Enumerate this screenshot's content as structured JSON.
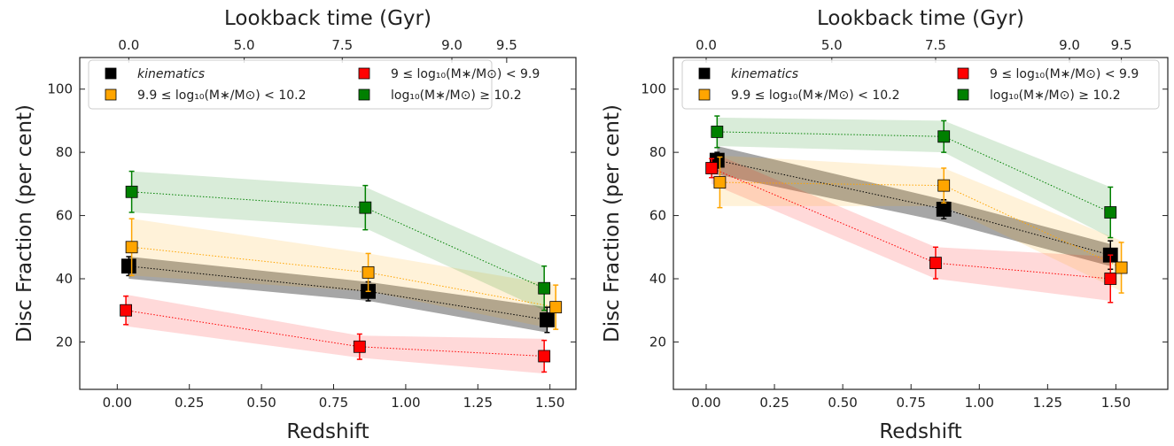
{
  "chart_data": [
    {
      "type": "errorbar",
      "xlabel": "Redshift",
      "ylabel": "Disc Fraction (per cent)",
      "x2label": "Lookback time (Gyr)",
      "xlim": [
        -0.13,
        1.59
      ],
      "ylim": [
        5,
        110
      ],
      "xticks": [
        {
          "value": 0,
          "label": "0.00"
        },
        {
          "value": 0.25,
          "label": "0.25"
        },
        {
          "value": 0.5,
          "label": "0.50"
        },
        {
          "value": 0.75,
          "label": "0.75"
        },
        {
          "value": 1,
          "label": "1.00"
        },
        {
          "value": 1.25,
          "label": "1.25"
        },
        {
          "value": 1.5,
          "label": "1.50"
        }
      ],
      "yticks": [
        20,
        40,
        60,
        80,
        100
      ],
      "x2ticks": [
        {
          "value": 0.04,
          "label": "0.0"
        },
        {
          "value": 0.44,
          "label": "5.0"
        },
        {
          "value": 0.78,
          "label": "7.5"
        },
        {
          "value": 1.16,
          "label": "9.0"
        },
        {
          "value": 1.35,
          "label": "9.5"
        }
      ],
      "series": [
        {
          "name": "kinematics",
          "color": "#000000",
          "x": [
            0.04,
            0.87,
            1.49
          ],
          "values": [
            44,
            36,
            27
          ],
          "errors": [
            3,
            3,
            4
          ],
          "band_lower": [
            40,
            33,
            23
          ],
          "band_upper": [
            47,
            39,
            31
          ]
        },
        {
          "name": "9 ≤ log₁₀(M∗/M⊙) < 9.9",
          "color": "#ff0000",
          "x": [
            0.03,
            0.84,
            1.48
          ],
          "values": [
            30,
            18.5,
            15.5
          ],
          "errors": [
            4.5,
            4,
            5
          ],
          "band_lower": [
            25,
            15,
            10
          ],
          "band_upper": [
            35,
            22,
            21
          ]
        },
        {
          "name": "9.9 ≤ log₁₀(M∗/M⊙) < 10.2",
          "color": "#ffa500",
          "x": [
            0.05,
            0.87,
            1.52
          ],
          "values": [
            50,
            42,
            31
          ],
          "errors": [
            9,
            6,
            7
          ],
          "band_lower": [
            41,
            36,
            24
          ],
          "band_upper": [
            59,
            48,
            38
          ]
        },
        {
          "name": "log₁₀(M∗/M⊙) ≥ 10.2",
          "color": "#008000",
          "x": [
            0.05,
            0.86,
            1.48
          ],
          "values": [
            67.5,
            62.5,
            37
          ],
          "errors": [
            6.5,
            7,
            7
          ],
          "band_lower": [
            61,
            56,
            30
          ],
          "band_upper": [
            74,
            69,
            44
          ]
        }
      ]
    },
    {
      "type": "errorbar",
      "xlabel": "Redshift",
      "ylabel": "Disc Fraction (per cent)",
      "x2label": "Lookback time (Gyr)",
      "xlim": [
        -0.12,
        1.69
      ],
      "ylim": [
        5,
        110
      ],
      "xticks": [
        {
          "value": 0,
          "label": "0.00"
        },
        {
          "value": 0.25,
          "label": "0.25"
        },
        {
          "value": 0.5,
          "label": "0.50"
        },
        {
          "value": 0.75,
          "label": "0.75"
        },
        {
          "value": 1,
          "label": "1.00"
        },
        {
          "value": 1.25,
          "label": "1.25"
        },
        {
          "value": 1.5,
          "label": "1.50"
        }
      ],
      "yticks": [
        20,
        40,
        60,
        80,
        100
      ],
      "x2ticks": [
        {
          "value": 0.0,
          "label": "0.0"
        },
        {
          "value": 0.46,
          "label": "5.0"
        },
        {
          "value": 0.84,
          "label": "7.5"
        },
        {
          "value": 1.33,
          "label": "9.0"
        },
        {
          "value": 1.52,
          "label": "9.5"
        }
      ],
      "series": [
        {
          "name": "kinematics",
          "color": "#000000",
          "x": [
            0.04,
            0.87,
            1.48
          ],
          "values": [
            77.5,
            62,
            47.5
          ],
          "errors": [
            2.5,
            3,
            4.5
          ],
          "band_lower": [
            73,
            58,
            44
          ],
          "band_upper": [
            82,
            65,
            51
          ]
        },
        {
          "name": "9 ≤ log₁₀(M∗/M⊙) < 9.9",
          "color": "#ff0000",
          "x": [
            0.02,
            0.84,
            1.48
          ],
          "values": [
            75,
            45,
            40
          ],
          "errors": [
            3,
            5,
            7.5
          ],
          "band_lower": [
            70,
            40,
            33
          ],
          "band_upper": [
            80,
            50,
            47
          ]
        },
        {
          "name": "9.9 ≤ log₁₀(M∗/M⊙) < 10.2",
          "color": "#ffa500",
          "x": [
            0.05,
            0.87,
            1.52
          ],
          "values": [
            70.5,
            69.5,
            43.5
          ],
          "errors": [
            8,
            5.5,
            8
          ],
          "band_lower": [
            63,
            63,
            36
          ],
          "band_upper": [
            79,
            75,
            52
          ]
        },
        {
          "name": "log₁₀(M∗/M⊙) ≥ 10.2",
          "color": "#008000",
          "x": [
            0.04,
            0.87,
            1.48
          ],
          "values": [
            86.5,
            85,
            61
          ],
          "errors": [
            5,
            5,
            8
          ],
          "band_lower": [
            82,
            80,
            53
          ],
          "band_upper": [
            91,
            90,
            69
          ]
        }
      ]
    }
  ]
}
